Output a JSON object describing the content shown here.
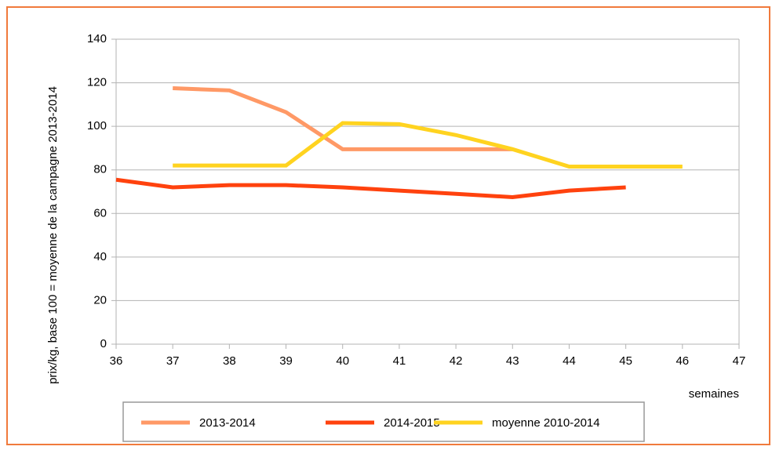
{
  "chart_data": {
    "type": "line",
    "y_label": "prix/kg, base 100 = moyenne de la campagne 2013-2014",
    "x_label": "semaines",
    "x": [
      36,
      37,
      38,
      39,
      40,
      41,
      42,
      43,
      44,
      45,
      46
    ],
    "series": [
      {
        "name": "2013-2014",
        "color": "#ff9966",
        "values": [
          null,
          117.5,
          116.5,
          106.5,
          89.5,
          89.5,
          89.5,
          89.5,
          null,
          null,
          null
        ]
      },
      {
        "name": "2014-2015",
        "color": "#ff420e",
        "values": [
          75.5,
          72,
          73,
          73,
          72,
          70.5,
          69,
          67.5,
          70.5,
          72,
          null
        ]
      },
      {
        "name": "moyenne 2010-2014",
        "color": "#ffd320",
        "values": [
          null,
          82,
          82,
          82,
          101.5,
          101,
          96,
          89.5,
          81.5,
          81.5,
          81.5
        ]
      }
    ],
    "xlim": [
      36,
      47
    ],
    "xticks": [
      36,
      37,
      38,
      39,
      40,
      41,
      42,
      43,
      44,
      45,
      46,
      47
    ],
    "ylim": [
      0,
      140
    ],
    "yticks": [
      0,
      20,
      40,
      60,
      80,
      100,
      120,
      140
    ],
    "grid": true,
    "legend": "bottom"
  }
}
